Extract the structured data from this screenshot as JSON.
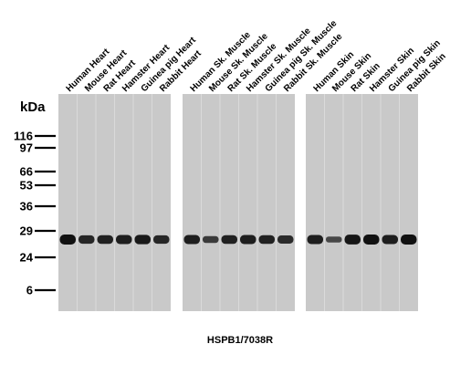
{
  "kda_label": "kDa",
  "caption": "HSPB1/7038R",
  "markers": [
    {
      "label": "116",
      "value": 116
    },
    {
      "label": "97",
      "value": 97
    },
    {
      "label": "66",
      "value": 66
    },
    {
      "label": "53",
      "value": 53
    },
    {
      "label": "36",
      "value": 36
    },
    {
      "label": "29",
      "value": 29
    },
    {
      "label": "24",
      "value": 24
    },
    {
      "label": "6",
      "value": 6
    }
  ],
  "band_mw": 27,
  "panels": [
    {
      "name": "heart",
      "lanes": [
        {
          "label": "Human Heart",
          "intensity": 1.0
        },
        {
          "label": "Mouse Heart",
          "intensity": 0.75
        },
        {
          "label": "Rat Heart",
          "intensity": 0.8
        },
        {
          "label": "Hamster Heart",
          "intensity": 0.85
        },
        {
          "label": "Guinea pig Heart",
          "intensity": 0.9
        },
        {
          "label": "Rabbit Heart",
          "intensity": 0.75
        }
      ]
    },
    {
      "name": "skeletal-muscle",
      "lanes": [
        {
          "label": "Human Sk. Muscle",
          "intensity": 0.85
        },
        {
          "label": "Mouse Sk. Muscle",
          "intensity": 0.5
        },
        {
          "label": "Rat Sk. Muscle",
          "intensity": 0.8
        },
        {
          "label": "Hamster Sk. Muscle",
          "intensity": 0.85
        },
        {
          "label": "Guinea pig Sk. Muscle",
          "intensity": 0.8
        },
        {
          "label": "Rabbit Sk. Muscle",
          "intensity": 0.7
        }
      ]
    },
    {
      "name": "skin",
      "lanes": [
        {
          "label": "Human Skin",
          "intensity": 0.85
        },
        {
          "label": "Mouse Skin",
          "intensity": 0.35
        },
        {
          "label": "Rat Skin",
          "intensity": 0.95
        },
        {
          "label": "Hamster Skin",
          "intensity": 1.0
        },
        {
          "label": "Guinea pig Skin",
          "intensity": 0.85
        },
        {
          "label": "Rabbit Skin",
          "intensity": 1.0
        }
      ]
    }
  ],
  "colors": {
    "membrane": "#c9c9c9",
    "lane_separator": "#e4e4e4",
    "band": "#111111",
    "marker_tick": "#000000"
  }
}
